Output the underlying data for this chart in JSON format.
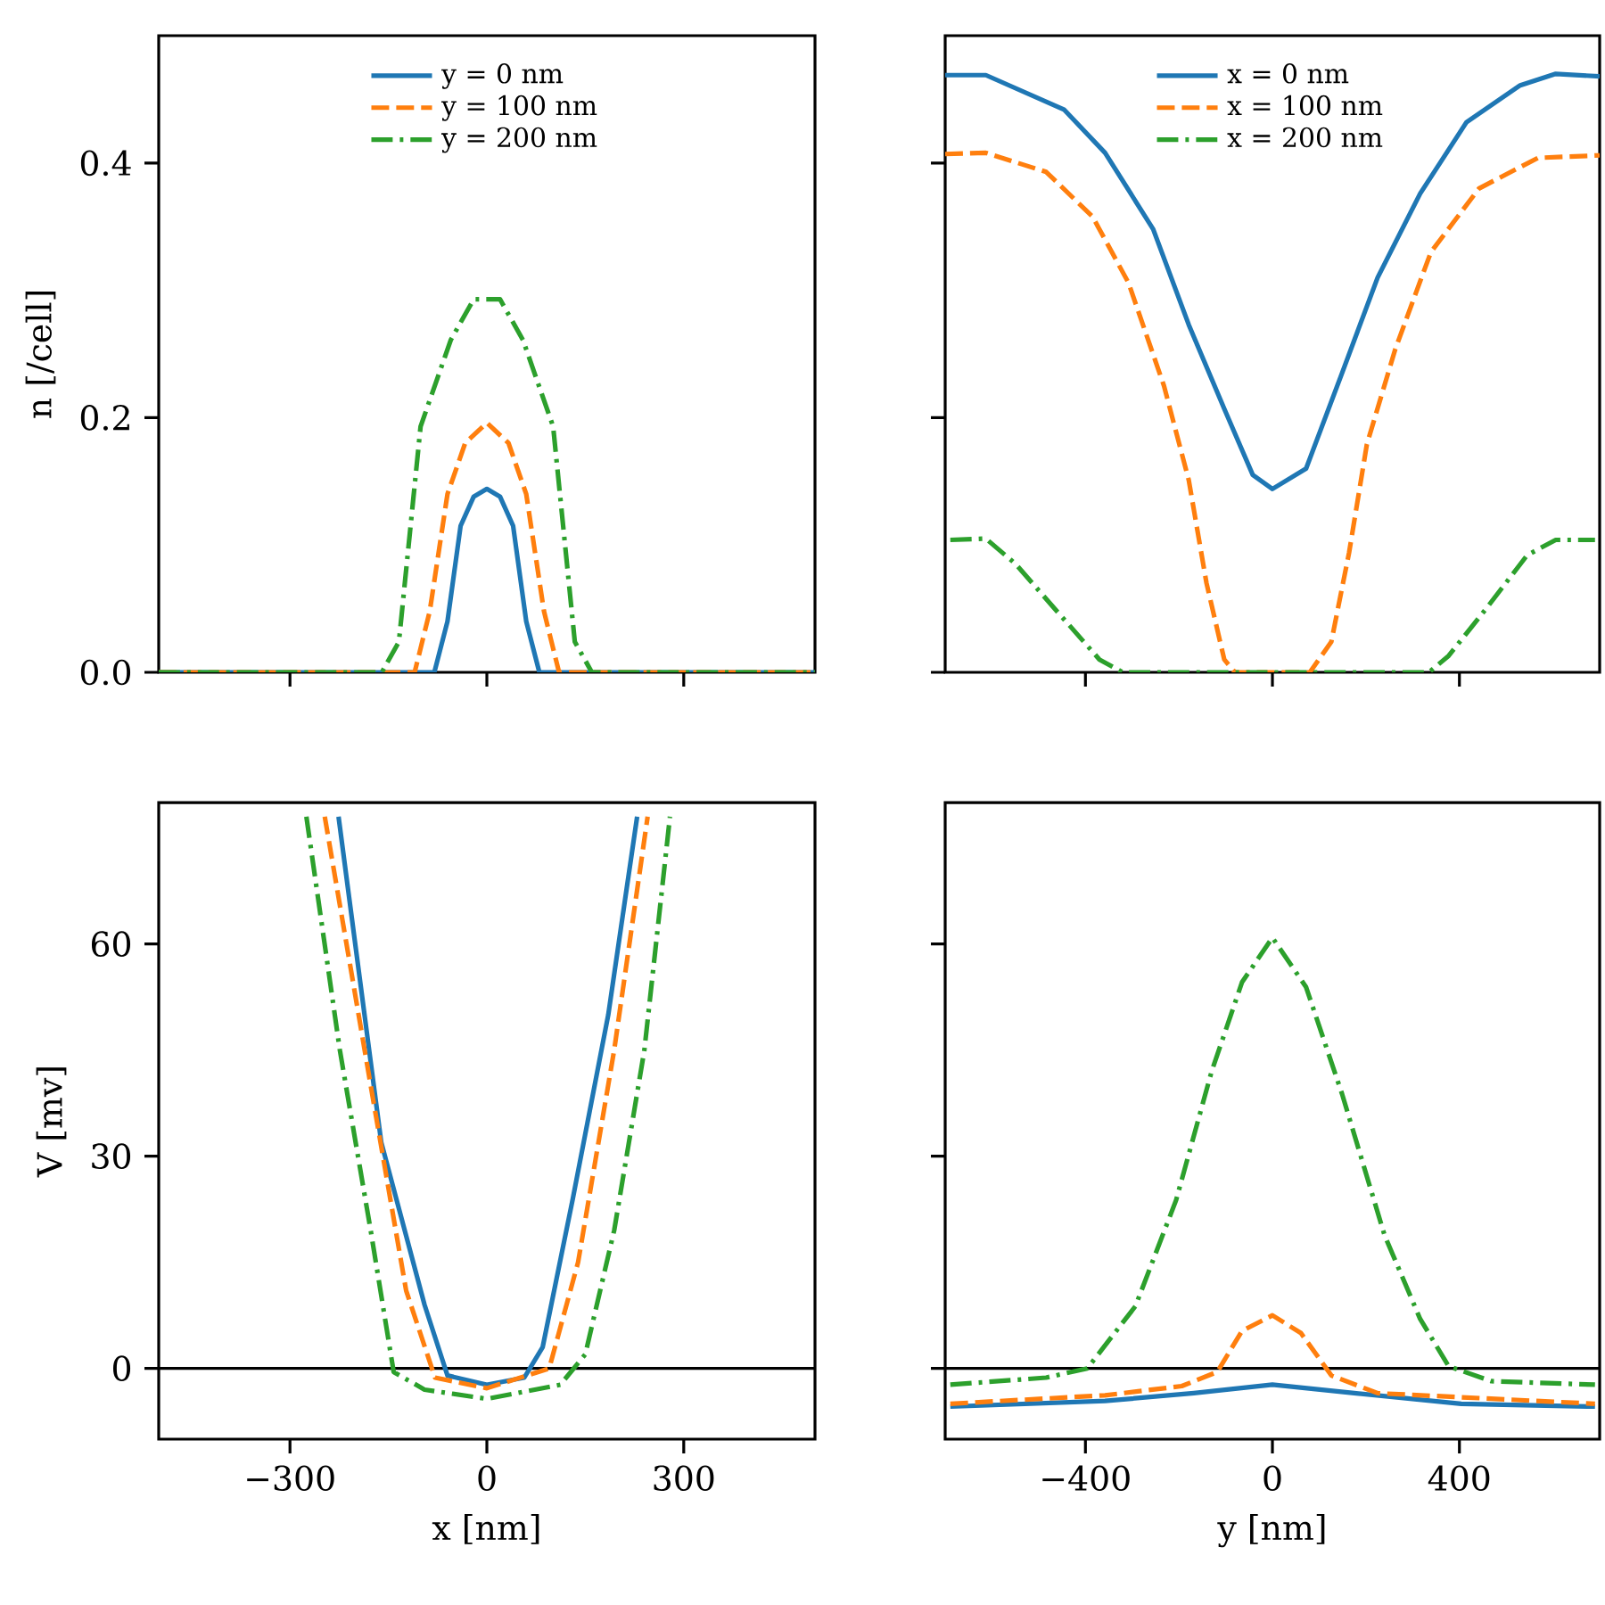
{
  "chart_data": [
    {
      "type": "line",
      "ylabel": "n [/cell]",
      "xlim": [
        -500,
        500
      ],
      "ylim": [
        0,
        0.5
      ],
      "xticks": [
        -300,
        0,
        300
      ],
      "yticks": [
        {
          "value": 0,
          "label": "0.0"
        },
        0.2,
        0.4
      ],
      "tick_labels": "y",
      "legend": "top",
      "series": [
        {
          "name": "y = 0 nm",
          "color": "#1f77b4",
          "line_style": "solid",
          "x": [
            -500,
            -80,
            -60,
            -40,
            -20,
            0,
            20,
            40,
            60,
            80,
            500
          ],
          "values": [
            0,
            0,
            0.04,
            0.115,
            0.138,
            0.144,
            0.138,
            0.115,
            0.04,
            0,
            0
          ]
        },
        {
          "name": "y = 100 nm",
          "color": "#ff7f0e",
          "line_style": "dashed",
          "x": [
            -500,
            -110,
            -87,
            -60,
            -33,
            0,
            33,
            60,
            87,
            110,
            500
          ],
          "values": [
            0,
            0,
            0.048,
            0.14,
            0.18,
            0.196,
            0.18,
            0.14,
            0.048,
            0,
            0
          ]
        },
        {
          "name": "y = 200 nm",
          "color": "#2ca02c",
          "line_style": "dashdot",
          "x": [
            -500,
            -160,
            -134,
            -101,
            -55,
            -20,
            20,
            55,
            101,
            134,
            160,
            500
          ],
          "values": [
            0,
            0,
            0.024,
            0.193,
            0.261,
            0.293,
            0.293,
            0.261,
            0.193,
            0.024,
            0,
            0
          ]
        }
      ]
    },
    {
      "type": "line",
      "xlim": [
        -700,
        700
      ],
      "ylim": [
        0,
        0.5
      ],
      "xticks": [
        -400,
        0,
        400
      ],
      "yticks": [
        0,
        0.2,
        0.4
      ],
      "tick_labels": false,
      "legend": "top",
      "series": [
        {
          "name": "x = 0 nm",
          "color": "#1f77b4",
          "line_style": "solid",
          "x": [
            -700,
            -613,
            -446,
            -358,
            -255,
            -179,
            -103,
            -42,
            0,
            72,
            149,
            225,
            316,
            415,
            530,
            606,
            700
          ],
          "values": [
            0.469,
            0.469,
            0.442,
            0.408,
            0.348,
            0.273,
            0.207,
            0.155,
            0.144,
            0.16,
            0.235,
            0.31,
            0.376,
            0.432,
            0.461,
            0.47,
            0.468
          ]
        },
        {
          "name": "x = 100 nm",
          "color": "#ff7f0e",
          "line_style": "dashed",
          "x": [
            -700,
            -613,
            -484,
            -385,
            -308,
            -232,
            -179,
            -141,
            -103,
            -80,
            80,
            126,
            164,
            202,
            263,
            339,
            442,
            568,
            700
          ],
          "values": [
            0.407,
            0.408,
            0.393,
            0.358,
            0.306,
            0.225,
            0.151,
            0.07,
            0.01,
            0,
            0,
            0.024,
            0.094,
            0.179,
            0.254,
            0.33,
            0.38,
            0.404,
            0.406
          ]
        },
        {
          "name": "x = 200 nm",
          "color": "#2ca02c",
          "line_style": "dashdot",
          "x": [
            -689,
            -613,
            -549,
            -461,
            -370,
            -320,
            335,
            377,
            453,
            545,
            606,
            690
          ],
          "values": [
            0.104,
            0.105,
            0.085,
            0.048,
            0.01,
            0,
            0,
            0.013,
            0.048,
            0.092,
            0.104,
            0.104
          ]
        }
      ]
    },
    {
      "type": "line",
      "xlabel": "x [nm]",
      "ylabel": "V [mv]",
      "xlim": [
        -500,
        500
      ],
      "ylim": [
        -10,
        80
      ],
      "xticks": [
        {
          "value": -300,
          "label": "−300"
        },
        0,
        300
      ],
      "yticks": [
        0,
        30,
        60
      ],
      "ref_lines": [
        {
          "axis": "y",
          "value": 0,
          "color": "#000000"
        }
      ],
      "series": [
        {
          "color": "#1f77b4",
          "line_style": "solid",
          "x": [
            -226,
            -161,
            -95,
            -60,
            0,
            57,
            85,
            131,
            185,
            229
          ],
          "values": [
            78,
            32,
            9,
            -1,
            -2.3,
            -1.3,
            3,
            24,
            50,
            78
          ]
        },
        {
          "color": "#ff7f0e",
          "line_style": "dashed",
          "x": [
            -247,
            -177,
            -123,
            -79,
            0,
            95,
            139,
            194,
            245
          ],
          "values": [
            78,
            40,
            11,
            -1.3,
            -2.8,
            0,
            15,
            45,
            78
          ]
        },
        {
          "color": "#2ca02c",
          "line_style": "dashdot",
          "x": [
            -275,
            -224,
            -177,
            -142,
            -95,
            0,
            112,
            150,
            194,
            240,
            279
          ],
          "values": [
            78,
            45,
            19.5,
            -0.5,
            -3,
            -4.3,
            -2.3,
            2,
            19.5,
            45,
            78
          ]
        }
      ]
    },
    {
      "type": "line",
      "xlabel": "y [nm]",
      "xlim": [
        -700,
        700
      ],
      "ylim": [
        -10,
        80
      ],
      "xticks": [
        {
          "value": -400,
          "label": "−400"
        },
        0,
        400
      ],
      "yticks": [
        0,
        30,
        60
      ],
      "tick_labels": "x",
      "ref_lines": [
        {
          "axis": "y",
          "value": 0,
          "color": "#000000"
        }
      ],
      "series": [
        {
          "color": "#1f77b4",
          "line_style": "solid",
          "x": [
            -689,
            -358,
            -168,
            0,
            175,
            404,
            690
          ],
          "values": [
            -5.4,
            -4.6,
            -3.5,
            -2.3,
            -3.5,
            -5,
            -5.4
          ]
        },
        {
          "color": "#ff7f0e",
          "line_style": "dashed",
          "x": [
            -689,
            -358,
            -194,
            -118,
            -65,
            0,
            61,
            126,
            225,
            690
          ],
          "values": [
            -5,
            -3.8,
            -2.5,
            -0.5,
            5.3,
            7.5,
            5,
            -1,
            -3.5,
            -5
          ]
        },
        {
          "color": "#2ca02c",
          "line_style": "dashdot",
          "x": [
            -689,
            -484,
            -396,
            -293,
            -206,
            -130,
            -65,
            0,
            72,
            149,
            240,
            316,
            377,
            468,
            690
          ],
          "values": [
            -2.3,
            -1.3,
            0,
            8.8,
            23.8,
            42,
            54.6,
            60.9,
            53.9,
            38.8,
            18.8,
            7,
            0.3,
            -1.8,
            -2.3
          ]
        }
      ]
    }
  ]
}
